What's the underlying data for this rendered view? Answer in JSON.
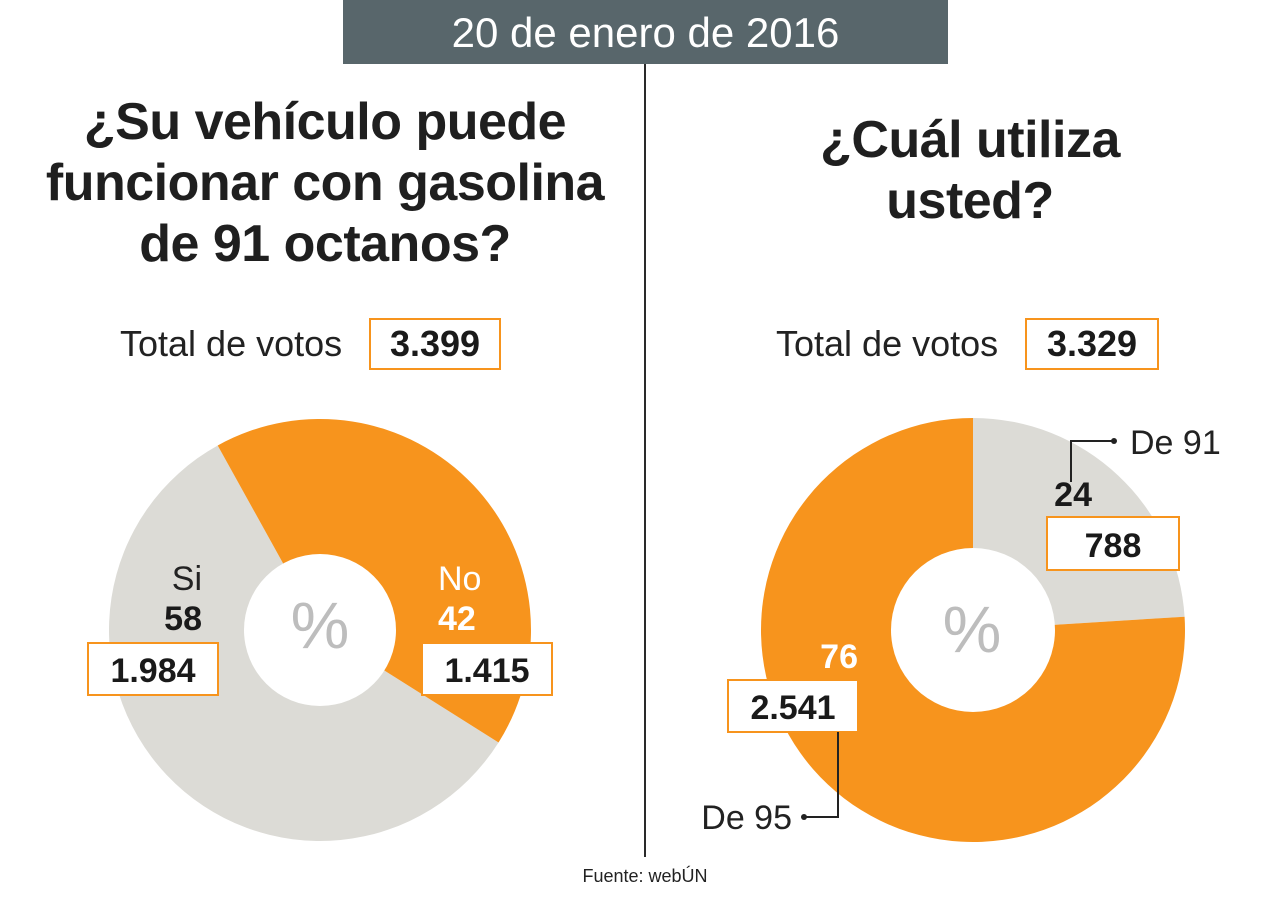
{
  "date": "20 de enero de 2016",
  "source": "Fuente: webÚN",
  "colors": {
    "orange": "#f7941d",
    "gray": "#dcdbd6",
    "banner": "#58666b"
  },
  "chart_data": [
    {
      "type": "pie",
      "title": "¿Su vehículo puede funcionar con gasolina de 91 octanos?",
      "title_lines": [
        "¿Su vehículo puede",
        "funcionar con gasolina",
        "de 91 octanos?"
      ],
      "total_label": "Total de votos",
      "total": "3.399",
      "center_label": "%",
      "slices": [
        {
          "label": "Si",
          "percent": "58",
          "value": 58,
          "votes": "1.984",
          "color": "#dcdbd6"
        },
        {
          "label": "No",
          "percent": "42",
          "value": 42,
          "votes": "1.415",
          "color": "#f7941d"
        }
      ]
    },
    {
      "type": "pie",
      "title": "¿Cuál utiliza usted?",
      "title_lines": [
        "¿Cuál utiliza",
        "usted?"
      ],
      "total_label": "Total de votos",
      "total": "3.329",
      "center_label": "%",
      "slices": [
        {
          "label": "De 91",
          "percent": "24",
          "value": 24,
          "votes": "788",
          "color": "#dcdbd6"
        },
        {
          "label": "De 95",
          "percent": "76",
          "value": 76,
          "votes": "2.541",
          "color": "#f7941d"
        }
      ]
    }
  ]
}
